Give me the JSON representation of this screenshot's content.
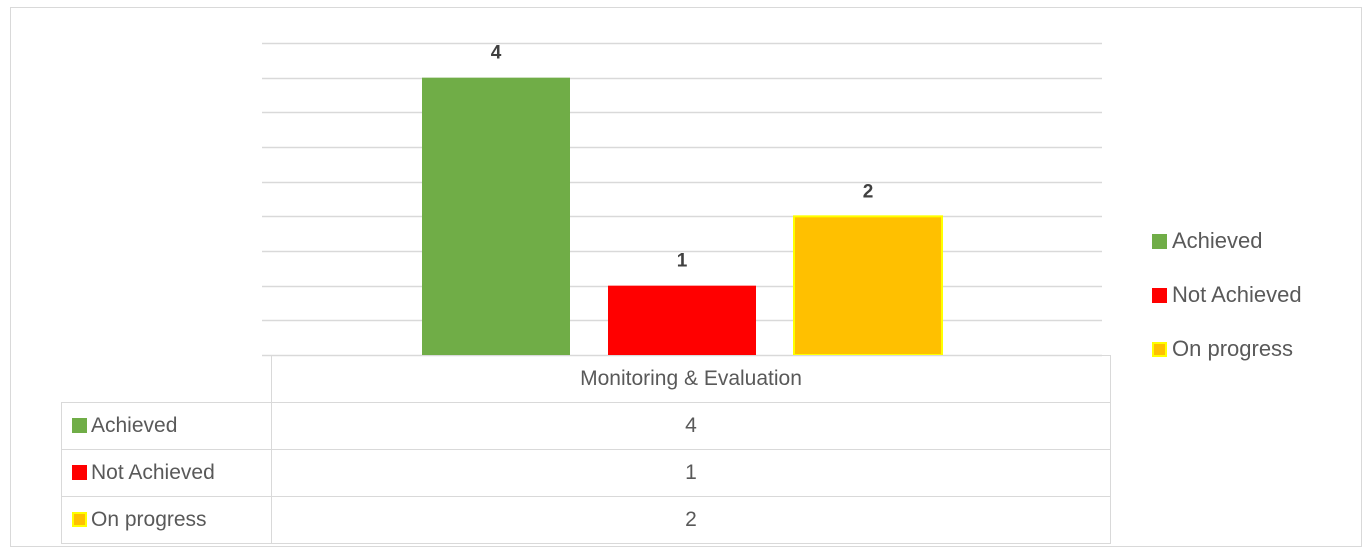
{
  "chart_data": {
    "type": "bar",
    "categories": [
      "Monitoring & Evaluation"
    ],
    "series": [
      {
        "name": "Achieved",
        "values": [
          4
        ],
        "color": "#70ad47"
      },
      {
        "name": "Not Achieved",
        "values": [
          1
        ],
        "color": "#ff0000"
      },
      {
        "name": "On progress",
        "values": [
          2
        ],
        "color": "#ffc000",
        "outline": "#ffff00"
      }
    ],
    "ylim": [
      0,
      4.5
    ],
    "gridline_step": 0.5,
    "grid": true,
    "data_labels": true,
    "legend_position": "right",
    "data_table": true
  }
}
